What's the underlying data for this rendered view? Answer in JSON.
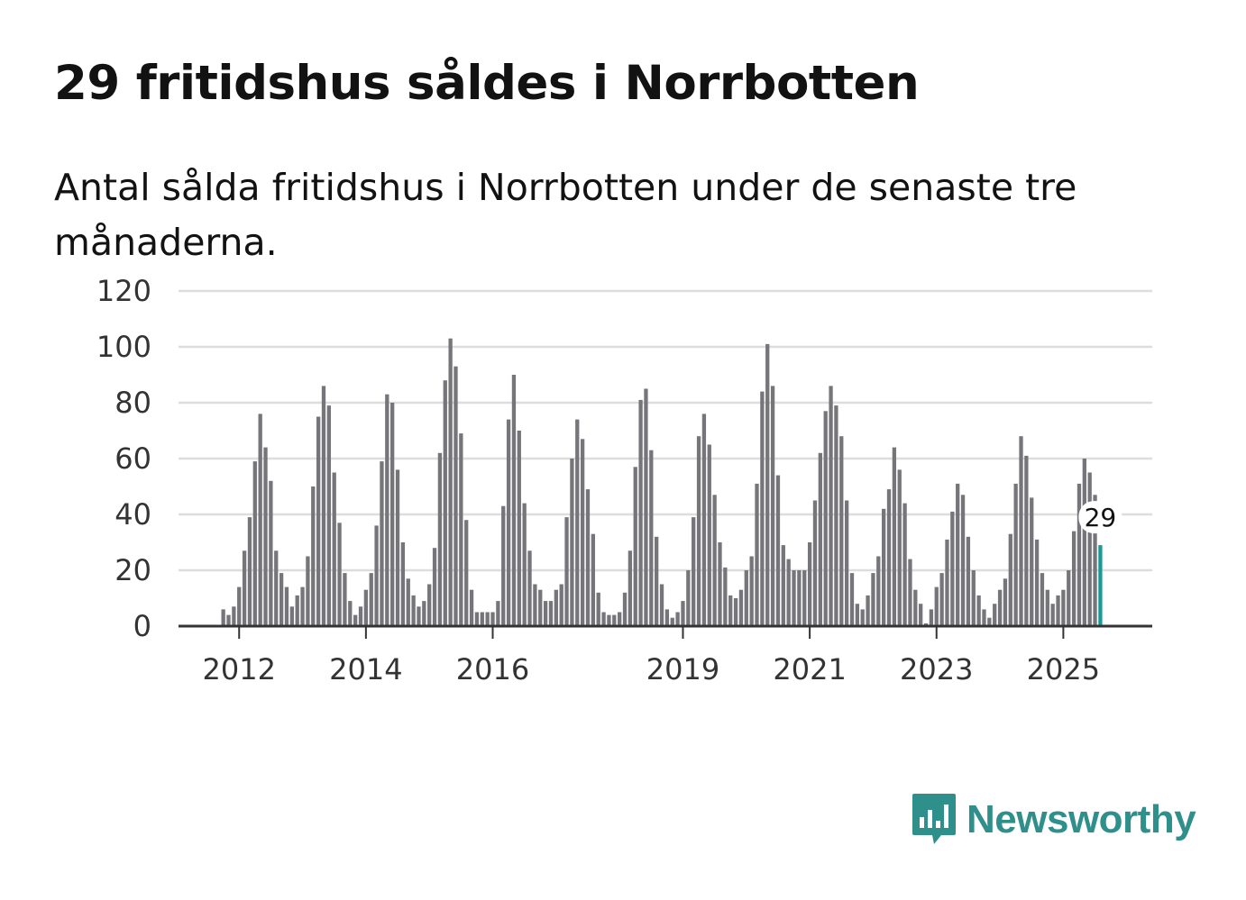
{
  "title": "29 fritidshus såldes i Norrbotten",
  "subtitle": "Antal sålda fritidshus i Norrbotten under de senaste tre månaderna.",
  "brand": {
    "name": "Newsworthy",
    "color": "#2f8f8a",
    "icon": "bar-chart-speech-bubble-icon"
  },
  "colors": {
    "bar": "#76757a",
    "highlight": "#1a9a92",
    "grid": "#dddddd",
    "axis": "#333333"
  },
  "chart_data": {
    "type": "bar",
    "x_start": "2011-10",
    "x_step": "month",
    "ylim": [
      0,
      120
    ],
    "yticks": [
      0,
      20,
      40,
      60,
      80,
      100,
      120
    ],
    "xtick_labels": [
      "2012",
      "2014",
      "2016",
      "2019",
      "2021",
      "2023",
      "2025"
    ],
    "xtick_dates": [
      "2012-01",
      "2014-01",
      "2016-01",
      "2019-01",
      "2021-01",
      "2023-01",
      "2025-01"
    ],
    "highlight_label": "29",
    "values": [
      6,
      4,
      7,
      14,
      27,
      39,
      59,
      76,
      64,
      52,
      27,
      19,
      14,
      7,
      11,
      14,
      25,
      50,
      75,
      86,
      79,
      55,
      37,
      19,
      9,
      4,
      7,
      13,
      19,
      36,
      59,
      83,
      80,
      56,
      30,
      17,
      11,
      7,
      9,
      15,
      28,
      62,
      88,
      103,
      93,
      69,
      38,
      13,
      5,
      5,
      5,
      5,
      9,
      43,
      74,
      90,
      70,
      44,
      27,
      15,
      13,
      9,
      9,
      13,
      15,
      39,
      60,
      74,
      67,
      49,
      33,
      12,
      5,
      4,
      4,
      5,
      12,
      27,
      57,
      81,
      85,
      63,
      32,
      15,
      6,
      3,
      5,
      9,
      20,
      39,
      68,
      76,
      65,
      47,
      30,
      21,
      11,
      10,
      13,
      20,
      25,
      51,
      84,
      101,
      86,
      54,
      29,
      24,
      20,
      20,
      20,
      30,
      45,
      62,
      77,
      86,
      79,
      68,
      45,
      19,
      8,
      6,
      11,
      19,
      25,
      42,
      49,
      64,
      56,
      44,
      24,
      13,
      8,
      1,
      6,
      14,
      19,
      31,
      41,
      51,
      47,
      32,
      20,
      11,
      6,
      3,
      8,
      13,
      17,
      33,
      51,
      68,
      61,
      46,
      31,
      19,
      13,
      8,
      11,
      13,
      20,
      34,
      51,
      60,
      55,
      47,
      29
    ]
  }
}
